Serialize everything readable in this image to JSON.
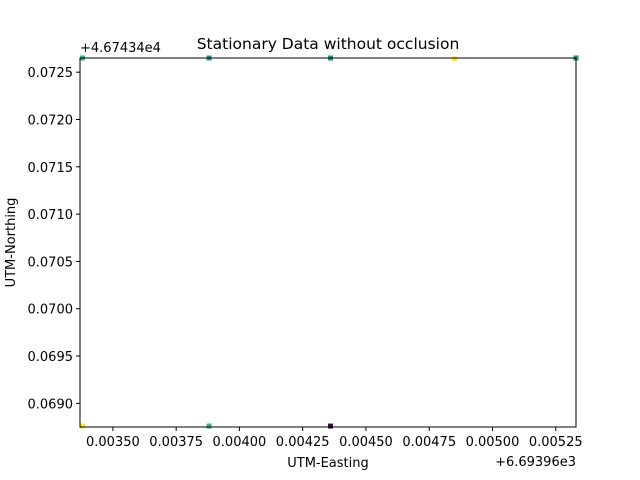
{
  "chart_data": {
    "type": "scatter",
    "title": "Stationary Data without occlusion",
    "xlabel": "UTM-Easting",
    "ylabel": "UTM-Northing",
    "x_offset_label": "+6.69396e3",
    "y_offset_label": "+4.67434e4",
    "xlim": [
      0.00337,
      0.00533
    ],
    "ylim": [
      0.06875,
      0.07265
    ],
    "x_ticks": [
      0.0035,
      0.00375,
      0.004,
      0.00425,
      0.0045,
      0.00475,
      0.005,
      0.00525
    ],
    "x_tick_labels": [
      "0.00350",
      "0.00375",
      "0.00400",
      "0.00425",
      "0.00450",
      "0.00475",
      "0.00500",
      "0.00525"
    ],
    "y_ticks": [
      0.069,
      0.0695,
      0.07,
      0.0705,
      0.071,
      0.0715,
      0.072,
      0.0725
    ],
    "y_tick_labels": [
      "0.0690",
      "0.0695",
      "0.0700",
      "0.0705",
      "0.0710",
      "0.0715",
      "0.0720",
      "0.0725"
    ],
    "grid": false,
    "points": [
      {
        "x": 0.00338,
        "y": 0.07265,
        "color": "#35b779"
      },
      {
        "x": 0.00388,
        "y": 0.07265,
        "color": "#21918c"
      },
      {
        "x": 0.00436,
        "y": 0.07265,
        "color": "#21918c"
      },
      {
        "x": 0.00485,
        "y": 0.07264,
        "color": "#fde725"
      },
      {
        "x": 0.00533,
        "y": 0.07265,
        "color": "#21918c"
      },
      {
        "x": 0.00338,
        "y": 0.06876,
        "color": "#fde725"
      },
      {
        "x": 0.00388,
        "y": 0.06876,
        "color": "#35b779"
      },
      {
        "x": 0.00436,
        "y": 0.06876,
        "color": "#440154"
      }
    ]
  }
}
